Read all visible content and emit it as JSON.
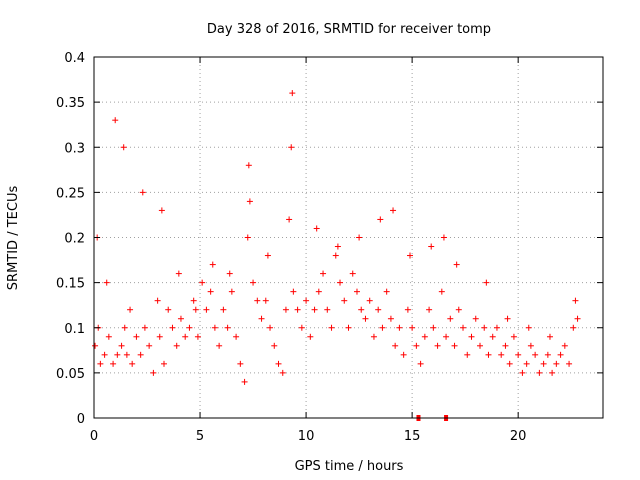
{
  "chart_data": {
    "type": "scatter",
    "title": "Day 328 of 2016, SRMTID for receiver tomp",
    "xlabel": "GPS time / hours",
    "ylabel": "SRMTID / TECUs",
    "xlim": [
      0,
      24
    ],
    "ylim": [
      0,
      0.4
    ],
    "xticks": [
      0,
      5,
      10,
      15,
      20
    ],
    "xtick_labels": [
      "0",
      "5",
      "10",
      "15",
      "20"
    ],
    "yticks": [
      0,
      0.05,
      0.1,
      0.15,
      0.2,
      0.25,
      0.3,
      0.35,
      0.4
    ],
    "ytick_labels": [
      "0",
      "0.05",
      "0.1",
      "0.15",
      "0.2",
      "0.25",
      "0.3",
      "0.35",
      "0.4"
    ],
    "grid": true,
    "marker": "+",
    "color": "#ff0000",
    "series": [
      {
        "name": "SRMTID",
        "x": [
          0.05,
          0.2,
          0.3,
          0.5,
          0.7,
          0.9,
          1.1,
          1.3,
          1.45,
          1.55,
          1.7,
          1.8,
          2.0,
          2.2,
          2.4,
          2.6,
          2.8,
          3.0,
          3.1,
          3.3,
          3.5,
          3.7,
          3.9,
          4.1,
          4.3,
          4.5,
          4.7,
          4.9,
          5.1,
          5.3,
          5.5,
          5.7,
          5.9,
          6.1,
          6.3,
          6.5,
          6.7,
          6.9,
          7.1,
          7.25,
          7.35,
          7.5,
          7.7,
          7.9,
          8.1,
          8.3,
          8.5,
          8.7,
          8.9,
          9.05,
          9.2,
          9.3,
          9.4,
          9.6,
          9.8,
          10.0,
          10.2,
          10.4,
          10.6,
          10.8,
          11.0,
          11.2,
          11.4,
          11.6,
          11.8,
          12.0,
          12.2,
          12.4,
          12.6,
          12.8,
          13.0,
          13.2,
          13.4,
          13.6,
          13.8,
          14.0,
          14.2,
          14.4,
          14.6,
          14.8,
          15.0,
          15.2,
          15.4,
          15.6,
          15.8,
          16.0,
          16.2,
          16.4,
          16.6,
          16.8,
          17.0,
          17.2,
          17.4,
          17.6,
          17.8,
          18.0,
          18.2,
          18.4,
          18.6,
          18.8,
          19.0,
          19.2,
          19.4,
          19.6,
          19.8,
          20.0,
          20.2,
          20.4,
          20.6,
          20.8,
          21.0,
          21.2,
          21.4,
          21.6,
          21.8,
          22.0,
          22.2,
          22.4,
          22.6,
          22.8,
          0.15,
          0.6,
          1.0,
          1.4,
          2.3,
          3.2,
          4.0,
          4.8,
          5.6,
          6.4,
          7.3,
          8.2,
          9.35,
          10.5,
          11.5,
          12.5,
          13.5,
          14.1,
          14.9,
          15.9,
          16.5,
          17.1,
          18.5,
          19.5,
          20.5,
          21.5,
          22.7
        ],
        "y": [
          0.08,
          0.1,
          0.06,
          0.07,
          0.09,
          0.06,
          0.07,
          0.08,
          0.1,
          0.07,
          0.12,
          0.06,
          0.09,
          0.07,
          0.1,
          0.08,
          0.05,
          0.13,
          0.09,
          0.06,
          0.12,
          0.1,
          0.08,
          0.11,
          0.09,
          0.1,
          0.13,
          0.09,
          0.15,
          0.12,
          0.14,
          0.1,
          0.08,
          0.12,
          0.1,
          0.14,
          0.09,
          0.06,
          0.04,
          0.2,
          0.24,
          0.15,
          0.13,
          0.11,
          0.13,
          0.1,
          0.08,
          0.06,
          0.05,
          0.12,
          0.22,
          0.3,
          0.14,
          0.12,
          0.1,
          0.13,
          0.09,
          0.12,
          0.14,
          0.16,
          0.12,
          0.1,
          0.18,
          0.15,
          0.13,
          0.1,
          0.16,
          0.14,
          0.12,
          0.11,
          0.13,
          0.09,
          0.12,
          0.1,
          0.14,
          0.11,
          0.08,
          0.1,
          0.07,
          0.12,
          0.1,
          0.08,
          0.06,
          0.09,
          0.12,
          0.1,
          0.08,
          0.14,
          0.09,
          0.11,
          0.08,
          0.12,
          0.1,
          0.07,
          0.09,
          0.11,
          0.08,
          0.1,
          0.07,
          0.09,
          0.1,
          0.07,
          0.08,
          0.06,
          0.09,
          0.07,
          0.05,
          0.06,
          0.08,
          0.07,
          0.05,
          0.06,
          0.07,
          0.05,
          0.06,
          0.07,
          0.08,
          0.06,
          0.1,
          0.11,
          0.2,
          0.15,
          0.33,
          0.3,
          0.25,
          0.23,
          0.16,
          0.12,
          0.17,
          0.16,
          0.28,
          0.18,
          0.36,
          0.21,
          0.19,
          0.2,
          0.22,
          0.23,
          0.18,
          0.19,
          0.2,
          0.17,
          0.15,
          0.11,
          0.1,
          0.09,
          0.13
        ],
        "zero_markers_x": [
          15.3,
          16.6
        ]
      }
    ]
  }
}
